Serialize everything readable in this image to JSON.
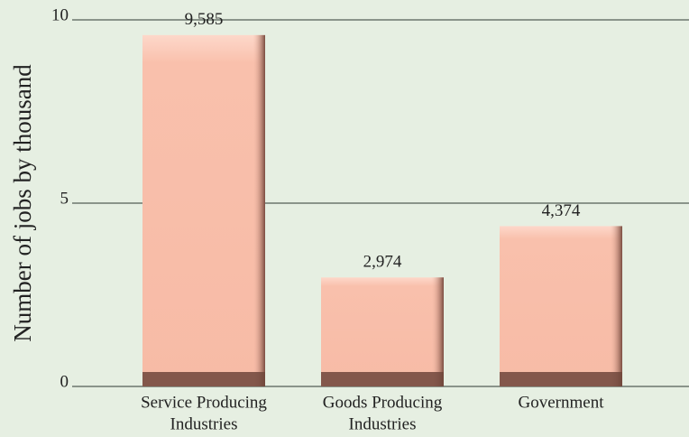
{
  "chart_data": {
    "type": "bar",
    "y_label": "Number of jobs by thousand",
    "categories": [
      [
        "Service Producing",
        "Industries"
      ],
      [
        "Goods Producing",
        "Industries"
      ],
      [
        "Government"
      ]
    ],
    "values": [
      9.585,
      2.974,
      4.374
    ],
    "value_labels": [
      "9,585",
      "2,974",
      "4,374"
    ],
    "color": "#f9c0ac",
    "ylim": [
      0,
      10
    ],
    "yticks": [
      0,
      5,
      10
    ],
    "grid": true
  }
}
